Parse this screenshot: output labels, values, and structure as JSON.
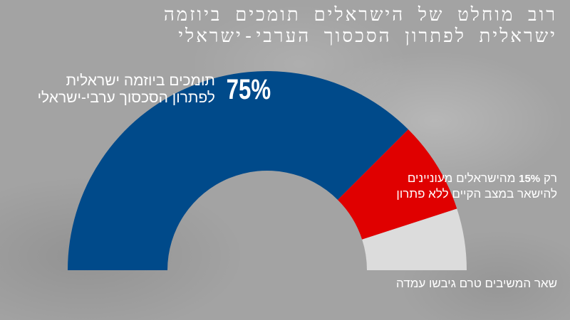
{
  "title": {
    "line1": "רוב מוחלט של הישראלים תומכים ביוזמה",
    "line2": "ישראלית לפתרון הסכסוך הערבי-ישראלי"
  },
  "labels": {
    "support_pct": "75%",
    "support_line1": "תומכים ביוזמה ישראלית",
    "support_line2": "לפתרון הסכסוך ערבי-ישראלי",
    "status_quo_prefix": "רק",
    "status_quo_pct": "15%",
    "status_quo_line1_rest": "מהישראלים מעוניינים",
    "status_quo_line2": "להישאר במצב הקיים ללא פתרון",
    "undecided": "שאר המשיבים טרם גיבשו עמדה"
  },
  "colors": {
    "background": "#a3a3a3",
    "support": "#004a8a",
    "status_quo": "#e00000",
    "undecided": "#dcdcdc"
  },
  "chart_data": {
    "type": "pie",
    "shape": "half-donut",
    "title": "רוב מוחלט של הישראלים תומכים ביוזמה ישראלית לפתרון הסכסוך הערבי-ישראלי",
    "categories": [
      "תומכים ביוזמה ישראלית לפתרון הסכסוך ערבי-ישראלי",
      "מעוניינים להישאר במצב הקיים ללא פתרון",
      "שאר המשיבים טרם גיבשו עמדה"
    ],
    "values": [
      75,
      15,
      10
    ],
    "unit": "%",
    "colors": [
      "#004a8a",
      "#e00000",
      "#dcdcdc"
    ]
  }
}
